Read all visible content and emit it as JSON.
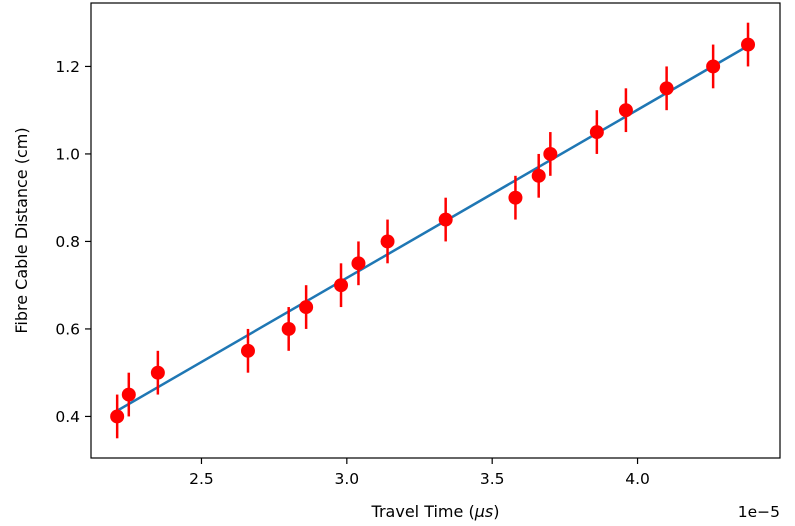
{
  "chart_data": {
    "type": "scatter",
    "xlabel": "Travel Time (",
    "xlabel_unit": "μs",
    "xlabel_close": ")",
    "ylabel": "Fibre Cable Distance (cm)",
    "x_offset_label": "1e−5",
    "xlim": [
      2.12,
      4.49
    ],
    "ylim": [
      0.305,
      1.345
    ],
    "x_ticks": [
      2.5,
      3.0,
      3.5,
      4.0
    ],
    "x_tick_labels": [
      "2.5",
      "3.0",
      "3.5",
      "4.0"
    ],
    "y_ticks": [
      0.4,
      0.6,
      0.8,
      1.0,
      1.2
    ],
    "y_tick_labels": [
      "0.4",
      "0.6",
      "0.8",
      "1.0",
      "1.2"
    ],
    "grid": false,
    "series": [
      {
        "kind": "errorbar-points",
        "color": "#ff0000",
        "x": [
          2.21,
          2.25,
          2.35,
          2.66,
          2.8,
          2.86,
          2.98,
          3.04,
          3.14,
          3.34,
          3.58,
          3.66,
          3.7,
          3.86,
          3.96,
          4.1,
          4.26,
          4.38
        ],
        "y": [
          0.4,
          0.45,
          0.5,
          0.55,
          0.6,
          0.65,
          0.7,
          0.75,
          0.8,
          0.85,
          0.9,
          0.95,
          1.0,
          1.05,
          1.1,
          1.15,
          1.2,
          1.25
        ],
        "yerr": 0.05
      },
      {
        "kind": "fit-line",
        "color": "#1f77b4",
        "x": [
          2.21,
          4.38
        ],
        "y": [
          0.413,
          1.247
        ]
      }
    ]
  }
}
